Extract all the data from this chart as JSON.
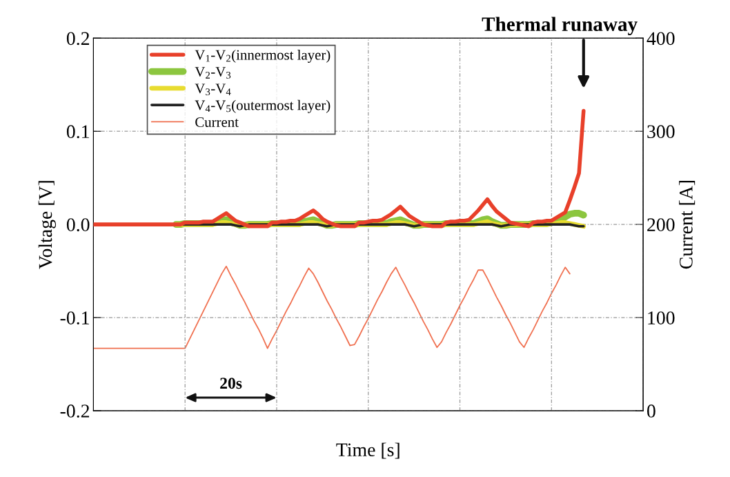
{
  "chart_data": {
    "type": "line",
    "xlabel": "Time [s]",
    "ylabel": "Voltage [V]",
    "y2label": "Current [A]",
    "categories": [
      null,
      null,
      null,
      null,
      null,
      null,
      null,
      null,
      null,
      null,
      null,
      null,
      null,
      null,
      null,
      null,
      null,
      null,
      null,
      null,
      null,
      null,
      null,
      null,
      null,
      null,
      null,
      null,
      null,
      null,
      null,
      null,
      null,
      null,
      null,
      null,
      null,
      null,
      null,
      null,
      null,
      null,
      null,
      null,
      null,
      null,
      null,
      null,
      null,
      null,
      null,
      null,
      null,
      null,
      null,
      null,
      null,
      null,
      null,
      null,
      null,
      null,
      null,
      null,
      null,
      null,
      null,
      null,
      null,
      null,
      null,
      null,
      null,
      null,
      null,
      null,
      null,
      null,
      null,
      null,
      null,
      null,
      null,
      null,
      null,
      null,
      null,
      null,
      null,
      null,
      null,
      null,
      null,
      null,
      null,
      null,
      null,
      null,
      null,
      null,
      null,
      null,
      null,
      null,
      null,
      null,
      null,
      null,
      null,
      null,
      null,
      null,
      null,
      null,
      null,
      null,
      null,
      null,
      null,
      null,
      null
    ],
    "ylim": [
      -0.2,
      0.2
    ],
    "yticks": [
      {
        "value": -0.2,
        "label": "-0.2"
      },
      {
        "value": -0.1,
        "label": "-0.1"
      },
      {
        "value": 0,
        "label": "0.0"
      },
      {
        "value": 0.1,
        "label": "0.1"
      },
      {
        "value": 0.2,
        "label": "0.2"
      }
    ],
    "y2lim": [
      0,
      400
    ],
    "y2ticks": [
      0,
      100,
      200,
      300,
      400
    ],
    "grid": true,
    "legend": "top left",
    "series": [
      {
        "name": "V$_{1}$-V$_{2}$(innermost layer)",
        "color": "#e8402a",
        "values": [
          0,
          0,
          0,
          0,
          0,
          0,
          0,
          0,
          0,
          0,
          0,
          0,
          0,
          0,
          0,
          0,
          0,
          0,
          0,
          0,
          0.002,
          0.002,
          0.002,
          0.002,
          0.003,
          0.003,
          0.003,
          0.006,
          0.009,
          0.012,
          0.008,
          0.004,
          0.002,
          0.0,
          -0.002,
          -0.002,
          -0.002,
          -0.002,
          -0.002,
          0.002,
          0.002,
          0.003,
          0.003,
          0.004,
          0.004,
          0.006,
          0.009,
          0.012,
          0.015,
          0.011,
          0.006,
          0.003,
          0.001,
          -0.001,
          -0.002,
          -0.002,
          -0.002,
          -0.002,
          0.002,
          0.002,
          0.003,
          0.004,
          0.004,
          0.005,
          0.008,
          0.011,
          0.015,
          0.019,
          0.014,
          0.009,
          0.006,
          0.003,
          0.0,
          -0.001,
          -0.002,
          -0.002,
          -0.002,
          0.002,
          0.003,
          0.003,
          0.004,
          0.004,
          0.005,
          0.01,
          0.015,
          0.021,
          0.027,
          0.02,
          0.014,
          0.01,
          0.006,
          0.002,
          0.001,
          0.0,
          -0.001,
          -0.002,
          0.002,
          0.003,
          0.003,
          0.004,
          0.004,
          0.007,
          0.01,
          0.013,
          0.026,
          0.04,
          0.055,
          0.122,
          null,
          null,
          null,
          null,
          null,
          null,
          null,
          null,
          null,
          null,
          null,
          null,
          null
        ]
      },
      {
        "name": "V$_{2}$-V$_{3}$",
        "color": "#8cc63f",
        "values": [
          null,
          null,
          null,
          null,
          null,
          null,
          null,
          null,
          null,
          null,
          null,
          null,
          null,
          null,
          null,
          null,
          null,
          null,
          0,
          0,
          0.001,
          0.001,
          0.001,
          0.001,
          0.001,
          0.001,
          0.001,
          0.003,
          0.004,
          0.005,
          0.003,
          0.001,
          -0.001,
          -0.001,
          0,
          0,
          0,
          0,
          0,
          0.001,
          0.001,
          0.001,
          0.001,
          0.001,
          0.001,
          0.001,
          0.003,
          0.004,
          0.005,
          0.003,
          0.001,
          -0.001,
          -0.001,
          0,
          0,
          0,
          0,
          0,
          0.001,
          0.001,
          0.001,
          0.001,
          0.001,
          0.001,
          0.001,
          0.003,
          0.004,
          0.005,
          0.003,
          0.001,
          -0.001,
          -0.001,
          0,
          0,
          0,
          0,
          0,
          0.001,
          0.001,
          0.001,
          0.001,
          0.001,
          0.001,
          0.001,
          0.003,
          0.005,
          0.006,
          0.003,
          0.001,
          -0.001,
          -0.001,
          0,
          0,
          0,
          0,
          0,
          0.001,
          0.001,
          0.001,
          0.001,
          0.002,
          0.003,
          0.005,
          0.008,
          0.011,
          0.012,
          0.012,
          0.01,
          null,
          null,
          null,
          null,
          null,
          null,
          null,
          null,
          null,
          null,
          null,
          null,
          null
        ]
      },
      {
        "name": "V$_{3}$-V$_{4}$",
        "color": "#e8dc30",
        "values": [
          null,
          null,
          null,
          null,
          null,
          null,
          null,
          null,
          null,
          null,
          null,
          null,
          null,
          null,
          null,
          null,
          null,
          null,
          0,
          0,
          0,
          0,
          0,
          0,
          0,
          0,
          0,
          0.001,
          0.002,
          0.002,
          0.001,
          0,
          -0.001,
          -0.001,
          0,
          0,
          0,
          0,
          0,
          0,
          0,
          0,
          0,
          0,
          0,
          0,
          0.001,
          0.002,
          0.002,
          0.001,
          0,
          -0.001,
          -0.001,
          0,
          0,
          0,
          0,
          0,
          0,
          0,
          0,
          0,
          0,
          0,
          0,
          0.001,
          0.002,
          0.002,
          0.001,
          0,
          -0.001,
          -0.001,
          0,
          0,
          0,
          0,
          0,
          0,
          0,
          0,
          0,
          0,
          0,
          0,
          0.001,
          0.002,
          0.003,
          0.001,
          0,
          -0.001,
          -0.001,
          0,
          0,
          0,
          0,
          0,
          0,
          0,
          0,
          0,
          0.001,
          0.001,
          0.002,
          0.002,
          0.001,
          0,
          -0.001,
          -0.002,
          null,
          null,
          null,
          null,
          null,
          null,
          null,
          null,
          null,
          null,
          null,
          null,
          null
        ]
      },
      {
        "name": "V$_{4}$-V$_{5}$(outermost layer)",
        "color": "#222222",
        "values": [
          null,
          null,
          null,
          null,
          null,
          null,
          null,
          null,
          null,
          null,
          null,
          null,
          null,
          null,
          null,
          null,
          null,
          null,
          0,
          0,
          0,
          0,
          0,
          0,
          0,
          0,
          0,
          0,
          0,
          0,
          0,
          -0.001,
          -0.002,
          -0.001,
          0,
          0,
          0,
          0,
          0,
          0,
          0,
          0,
          0,
          0,
          0,
          0,
          0,
          0,
          0,
          0,
          -0.001,
          -0.002,
          -0.001,
          0,
          0,
          0,
          0,
          0,
          0,
          0,
          0,
          0,
          0,
          0,
          0,
          0,
          0,
          0,
          0,
          -0.001,
          -0.002,
          -0.001,
          0,
          0,
          0,
          0,
          0,
          0,
          0,
          0,
          0,
          0,
          0,
          0,
          0,
          0,
          0,
          0,
          -0.001,
          -0.002,
          -0.001,
          0,
          0,
          0,
          0,
          0,
          0,
          0,
          0,
          0,
          0,
          0,
          0,
          0,
          0,
          -0.001,
          -0.002,
          -0.002,
          null,
          null,
          null,
          null,
          null,
          null,
          null,
          null,
          null,
          null,
          null,
          null,
          null
        ]
      },
      {
        "name": "Current",
        "color": "#f07050",
        "axis": "y2",
        "values": [
          67,
          67,
          67,
          67,
          67,
          67,
          67,
          67,
          67,
          67,
          67,
          67,
          67,
          67,
          67,
          67,
          67,
          67,
          67,
          67,
          67,
          77,
          87,
          97,
          107,
          117,
          127,
          137,
          147,
          155,
          145,
          136,
          126,
          117,
          107,
          97,
          88,
          78,
          67,
          77,
          86,
          96,
          106,
          115,
          125,
          134,
          144,
          153,
          147,
          138,
          128,
          118,
          109,
          99,
          90,
          80,
          70,
          71,
          80,
          90,
          99,
          109,
          119,
          128,
          138,
          147,
          154,
          144,
          135,
          125,
          116,
          106,
          96,
          87,
          77,
          68,
          74,
          84,
          93,
          103,
          113,
          122,
          132,
          141,
          151,
          151,
          142,
          132,
          122,
          113,
          103,
          94,
          84,
          74,
          68,
          78,
          87,
          97,
          107,
          116,
          126,
          135,
          145,
          154,
          147,
          null,
          null,
          null,
          null,
          null,
          null,
          null,
          null,
          null,
          null,
          null,
          null,
          null,
          null,
          null,
          null
        ]
      }
    ],
    "annotations": [
      "Thermal runaway",
      "20s"
    ]
  }
}
